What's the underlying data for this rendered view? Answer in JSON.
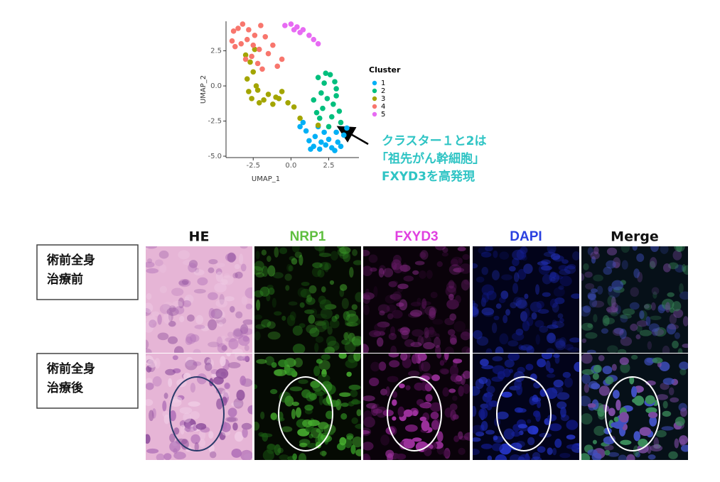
{
  "chart_data": {
    "type": "scatter",
    "xlabel": "UMAP_1",
    "ylabel": "UMAP_2",
    "xlim": [
      -4.3,
      4.5
    ],
    "ylim": [
      -5.1,
      4.6
    ],
    "xticks": [
      -2.5,
      {
        "value": 0,
        "label": "0.0"
      },
      2.5
    ],
    "yticks": [
      {
        "value": -5,
        "label": "-5.0"
      },
      -2.5,
      {
        "value": 0,
        "label": "0.0"
      },
      2.5
    ],
    "legend_title": "Cluster",
    "series": [
      {
        "name": "1",
        "color": "#00b0f6",
        "x": [
          0.8,
          1.2,
          1.5,
          1.9,
          2.3,
          2.7,
          3.1,
          3.5,
          1.0,
          1.6,
          2.0,
          2.5,
          3.0,
          3.7,
          1.3,
          2.2,
          2.9,
          0.6,
          3.3,
          1.8
        ],
        "y": [
          -2.6,
          -3.9,
          -4.3,
          -4.5,
          -4.2,
          -4.4,
          -4.0,
          -3.5,
          -3.2,
          -3.6,
          -4.0,
          -3.8,
          -3.3,
          -3.0,
          -4.5,
          -3.3,
          -4.6,
          -2.9,
          -4.3,
          -2.9
        ]
      },
      {
        "name": "2",
        "color": "#00bf7d",
        "x": [
          1.8,
          2.2,
          2.6,
          3.0,
          2.0,
          2.4,
          2.8,
          3.2,
          1.5,
          2.1,
          2.7,
          3.3,
          1.9,
          2.5,
          3.0,
          2.3,
          1.7,
          2.9
        ],
        "y": [
          0.6,
          0.2,
          0.8,
          -0.2,
          -0.5,
          -0.9,
          -1.3,
          -1.8,
          -1.0,
          -1.6,
          -2.2,
          -2.6,
          -2.3,
          -2.9,
          -0.7,
          0.9,
          -1.9,
          0.3
        ]
      },
      {
        "name": "3",
        "color": "#a3a500",
        "x": [
          -3.0,
          -2.7,
          -2.5,
          -2.9,
          -2.3,
          -2.8,
          -2.6,
          -2.1,
          -1.8,
          -1.5,
          -1.0,
          -0.6,
          -0.2,
          0.2,
          -2.4,
          -1.2,
          -0.8,
          0.6,
          1.8,
          -2.2
        ],
        "y": [
          2.2,
          1.7,
          1.0,
          0.5,
          0.0,
          -0.4,
          -0.9,
          -1.2,
          -1.0,
          -0.6,
          -0.8,
          -0.4,
          -1.2,
          -1.5,
          2.6,
          -1.3,
          -0.9,
          -2.3,
          -2.8,
          -0.3
        ]
      },
      {
        "name": "4",
        "color": "#f8766d",
        "x": [
          -3.9,
          -3.5,
          -3.2,
          -2.8,
          -2.4,
          -2.0,
          -3.7,
          -3.3,
          -2.9,
          -2.5,
          -2.1,
          -1.7,
          -3.0,
          -2.6,
          -2.2,
          -1.5,
          -1.2,
          -0.9,
          -3.8,
          -1.9,
          -0.6
        ],
        "y": [
          3.2,
          4.1,
          4.4,
          4.0,
          3.6,
          4.3,
          2.8,
          3.0,
          3.3,
          2.9,
          2.6,
          3.5,
          1.9,
          2.1,
          1.6,
          2.3,
          2.9,
          1.4,
          3.9,
          1.2,
          1.9
        ]
      },
      {
        "name": "5",
        "color": "#e76bf3",
        "x": [
          -0.4,
          0.0,
          0.4,
          0.8,
          1.2,
          1.5,
          1.8,
          0.2,
          0.6
        ],
        "y": [
          4.3,
          4.4,
          4.2,
          4.0,
          3.6,
          3.3,
          3.0,
          4.0,
          3.8
        ]
      }
    ],
    "annotation": [
      "クラスター１と2は",
      "「祖先がん幹細胞」",
      "FXYD3を高発現"
    ]
  },
  "panels": {
    "columns": [
      "HE",
      "NRP1",
      "FXYD3",
      "DAPI",
      "Merge"
    ],
    "rows": [
      [
        "術前全身",
        "治療前"
      ],
      [
        "術前全身",
        "治療後"
      ]
    ]
  }
}
